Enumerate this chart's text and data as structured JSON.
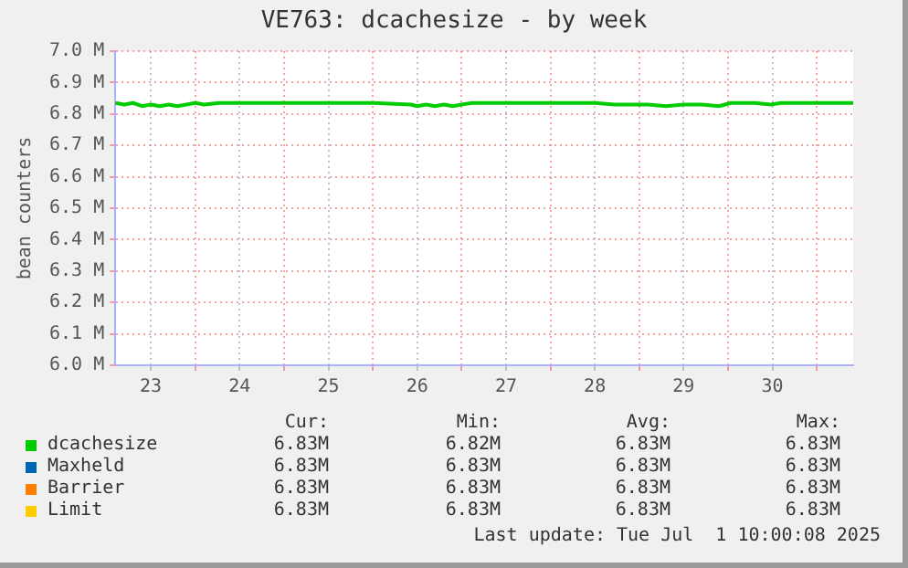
{
  "chart_data": {
    "type": "line",
    "title": "VE763: dcachesize - by week",
    "ylabel": "bean counters",
    "x": [
      23.1,
      23.2,
      23.3,
      23.4,
      23.5,
      23.6,
      23.7,
      23.8,
      23.9,
      24.0,
      24.1,
      24.27,
      24.5,
      25.0,
      25.5,
      26.0,
      26.43,
      26.5,
      26.6,
      26.7,
      26.8,
      26.9,
      27.0,
      27.12,
      27.5,
      28.0,
      28.5,
      28.72,
      28.9,
      29.1,
      29.3,
      29.5,
      29.7,
      29.9,
      30.03,
      30.3,
      30.48,
      30.6,
      31.0,
      31.41
    ],
    "series": [
      {
        "name": "dcachesize",
        "color": "#00cc00",
        "values": [
          6.835,
          6.83,
          6.835,
          6.825,
          6.83,
          6.825,
          6.83,
          6.825,
          6.83,
          6.835,
          6.83,
          6.835,
          6.835,
          6.835,
          6.835,
          6.835,
          6.83,
          6.825,
          6.83,
          6.825,
          6.83,
          6.825,
          6.83,
          6.835,
          6.835,
          6.835,
          6.835,
          6.83,
          6.83,
          6.83,
          6.825,
          6.83,
          6.83,
          6.825,
          6.835,
          6.835,
          6.83,
          6.835,
          6.835,
          6.835
        ]
      },
      {
        "name": "Maxheld",
        "color": "#0066b3",
        "values": [
          null,
          null,
          null,
          null,
          null,
          null,
          null,
          null,
          null,
          null,
          null,
          null,
          null,
          null,
          null,
          null,
          null,
          null,
          null,
          null,
          null,
          null,
          null,
          null,
          null,
          null,
          null,
          null,
          null,
          null,
          null,
          null,
          null,
          null,
          null,
          null,
          null,
          null,
          null,
          null
        ]
      },
      {
        "name": "Barrier",
        "color": "#ff8000",
        "values": [
          null,
          null,
          null,
          null,
          null,
          null,
          null,
          null,
          null,
          null,
          null,
          null,
          null,
          null,
          null,
          null,
          null,
          null,
          null,
          null,
          null,
          null,
          null,
          null,
          null,
          null,
          null,
          null,
          null,
          null,
          null,
          null,
          null,
          null,
          null,
          null,
          null,
          null,
          null,
          null
        ]
      },
      {
        "name": "Limit",
        "color": "#ffcc00",
        "values": [
          null,
          null,
          null,
          null,
          null,
          null,
          null,
          null,
          null,
          null,
          null,
          null,
          null,
          null,
          null,
          null,
          null,
          null,
          null,
          null,
          null,
          null,
          null,
          null,
          null,
          null,
          null,
          null,
          null,
          null,
          null,
          null,
          null,
          null,
          null,
          null,
          null,
          null,
          null,
          null
        ]
      }
    ],
    "xlim": [
      23.1,
      31.41
    ],
    "xticks": [
      {
        "value": 23.5,
        "label": "23"
      },
      {
        "value": 24,
        "label": null
      },
      {
        "value": 24.5,
        "label": "24"
      },
      {
        "value": 25,
        "label": null
      },
      {
        "value": 25.5,
        "label": "25"
      },
      {
        "value": 26,
        "label": null
      },
      {
        "value": 26.5,
        "label": "26"
      },
      {
        "value": 27,
        "label": null
      },
      {
        "value": 27.5,
        "label": "27"
      },
      {
        "value": 28,
        "label": null
      },
      {
        "value": 28.5,
        "label": "28"
      },
      {
        "value": 29,
        "label": null
      },
      {
        "value": 29.5,
        "label": "29"
      },
      {
        "value": 30,
        "label": null
      },
      {
        "value": 30.5,
        "label": "30"
      },
      {
        "value": 31,
        "label": null
      }
    ],
    "ylim": [
      6.0,
      7.0
    ],
    "yticks": [
      {
        "value": 6.0,
        "label": "6.0 M"
      },
      {
        "value": 6.1,
        "label": "6.1 M"
      },
      {
        "value": 6.2,
        "label": "6.2 M"
      },
      {
        "value": 6.3,
        "label": "6.3 M"
      },
      {
        "value": 6.4,
        "label": "6.4 M"
      },
      {
        "value": 6.5,
        "label": "6.5 M"
      },
      {
        "value": 6.6,
        "label": "6.6 M"
      },
      {
        "value": 6.7,
        "label": "6.7 M"
      },
      {
        "value": 6.8,
        "label": "6.8 M"
      },
      {
        "value": 6.9,
        "label": "6.9 M"
      },
      {
        "value": 7.0,
        "label": "7.0 M"
      }
    ],
    "grid": true,
    "legend": "bottom",
    "marker": "none",
    "line_style": "solid",
    "annotations": [
      "Cur:",
      "Min:",
      "Avg:",
      "Max:",
      "6.83M",
      "6.82M",
      "6.83M",
      "6.83M",
      "6.83M",
      "6.83M",
      "6.83M",
      "6.83M",
      "6.83M",
      "6.83M",
      "6.83M",
      "6.83M",
      "6.83M",
      "6.83M",
      "6.83M",
      "6.83M",
      "Last update: Tue Jul  1 10:00:08 2025"
    ]
  }
}
